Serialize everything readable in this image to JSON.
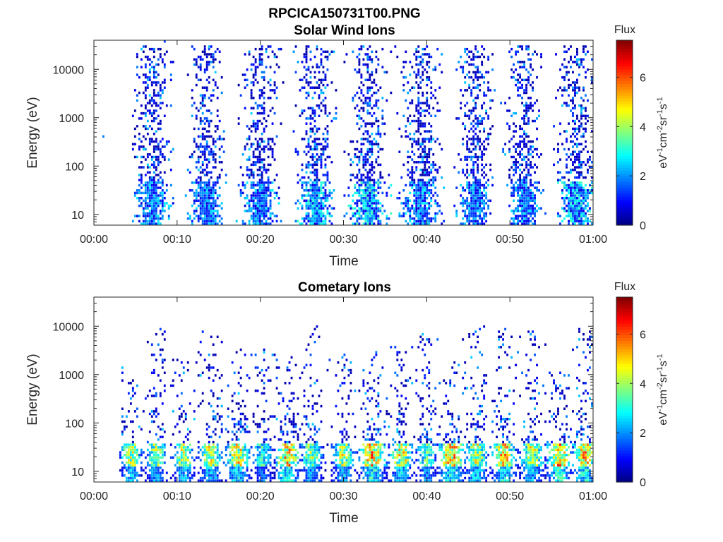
{
  "figure": {
    "title": "RPCICA150731T00.PNG"
  },
  "chart_data": [
    {
      "type": "heatmap",
      "title": "Solar Wind Ions",
      "xlabel": "Time",
      "ylabel": "Energy (eV)",
      "x_range_minutes": [
        0,
        60
      ],
      "ylim": [
        6,
        40000
      ],
      "yscale": "log",
      "x_ticks": [
        "00:00",
        "00:10",
        "00:20",
        "00:30",
        "00:40",
        "00:50",
        "01:00"
      ],
      "y_ticks": [
        "10",
        "100",
        "1000",
        "10000"
      ],
      "y_tick_values": [
        10,
        100,
        1000,
        10000
      ],
      "grid": false,
      "colorbar": {
        "label": "eV-1cm-2sr-1s-1",
        "title": "Flux",
        "range": [
          0,
          7.5
        ],
        "ticks": [
          "0",
          "2",
          "4",
          "6"
        ],
        "tick_values": [
          0,
          2,
          4,
          6
        ],
        "colormap": "jet"
      },
      "bursts": [
        {
          "center_min": 7.1,
          "width_min": 2.2,
          "emax": 30000,
          "peak_flux": 3.2
        },
        {
          "center_min": 13.6,
          "width_min": 2.2,
          "emax": 30000,
          "peak_flux": 3.0
        },
        {
          "center_min": 20.0,
          "width_min": 2.4,
          "emax": 30000,
          "peak_flux": 3.2
        },
        {
          "center_min": 26.7,
          "width_min": 2.4,
          "emax": 30000,
          "peak_flux": 3.8
        },
        {
          "center_min": 33.0,
          "width_min": 2.4,
          "emax": 30000,
          "peak_flux": 4.2
        },
        {
          "center_min": 39.3,
          "width_min": 2.4,
          "emax": 30000,
          "peak_flux": 3.2
        },
        {
          "center_min": 45.8,
          "width_min": 2.2,
          "emax": 30000,
          "peak_flux": 3.0
        },
        {
          "center_min": 51.7,
          "width_min": 2.2,
          "emax": 30000,
          "peak_flux": 3.0
        },
        {
          "center_min": 58.0,
          "width_min": 2.4,
          "emax": 30000,
          "peak_flux": 4.0
        }
      ]
    },
    {
      "type": "heatmap",
      "title": "Cometary Ions",
      "xlabel": "Time",
      "ylabel": "Energy (eV)",
      "x_range_minutes": [
        0,
        60
      ],
      "ylim": [
        6,
        40000
      ],
      "yscale": "log",
      "x_ticks": [
        "00:00",
        "00:10",
        "00:20",
        "00:30",
        "00:40",
        "00:50",
        "01:00"
      ],
      "y_ticks": [
        "10",
        "100",
        "1000",
        "10000"
      ],
      "y_tick_values": [
        10,
        100,
        1000,
        10000
      ],
      "grid": false,
      "colorbar": {
        "label": "eV-1cm-2sr-1s-1",
        "title": "Flux",
        "range": [
          0,
          7.5
        ],
        "ticks": [
          "0",
          "2",
          "4",
          "6"
        ],
        "tick_values": [
          0,
          2,
          4,
          6
        ],
        "colormap": "jet"
      },
      "bursts": [
        {
          "center_min": 4.5,
          "width_min": 1.6,
          "emax": 1500,
          "peak_flux": 5.5
        },
        {
          "center_min": 7.5,
          "width_min": 1.6,
          "emax": 9000,
          "peak_flux": 5.0
        },
        {
          "center_min": 10.8,
          "width_min": 1.6,
          "emax": 2000,
          "peak_flux": 5.8
        },
        {
          "center_min": 14.0,
          "width_min": 1.8,
          "emax": 8000,
          "peak_flux": 5.5
        },
        {
          "center_min": 17.3,
          "width_min": 1.8,
          "emax": 4000,
          "peak_flux": 6.0
        },
        {
          "center_min": 20.3,
          "width_min": 1.6,
          "emax": 3500,
          "peak_flux": 4.0
        },
        {
          "center_min": 23.3,
          "width_min": 2.0,
          "emax": 2500,
          "peak_flux": 6.5
        },
        {
          "center_min": 26.2,
          "width_min": 1.6,
          "emax": 10000,
          "peak_flux": 5.0
        },
        {
          "center_min": 30.0,
          "width_min": 1.6,
          "emax": 3000,
          "peak_flux": 5.5
        },
        {
          "center_min": 33.5,
          "width_min": 2.0,
          "emax": 3000,
          "peak_flux": 6.8
        },
        {
          "center_min": 37.0,
          "width_min": 1.8,
          "emax": 4000,
          "peak_flux": 6.0
        },
        {
          "center_min": 40.0,
          "width_min": 1.6,
          "emax": 8000,
          "peak_flux": 4.5
        },
        {
          "center_min": 43.0,
          "width_min": 2.0,
          "emax": 2500,
          "peak_flux": 6.8
        },
        {
          "center_min": 46.0,
          "width_min": 1.8,
          "emax": 10000,
          "peak_flux": 5.5
        },
        {
          "center_min": 49.3,
          "width_min": 1.8,
          "emax": 9000,
          "peak_flux": 6.5
        },
        {
          "center_min": 52.7,
          "width_min": 1.8,
          "emax": 9000,
          "peak_flux": 5.5
        },
        {
          "center_min": 56.0,
          "width_min": 2.0,
          "emax": 1500,
          "peak_flux": 6.8
        },
        {
          "center_min": 59.0,
          "width_min": 1.8,
          "emax": 9000,
          "peak_flux": 6.5
        }
      ]
    }
  ]
}
